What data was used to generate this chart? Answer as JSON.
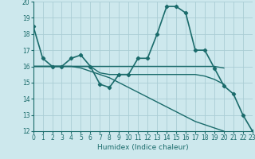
{
  "xlabel": "Humidex (Indice chaleur)",
  "x_values": [
    0,
    1,
    2,
    3,
    4,
    5,
    6,
    7,
    8,
    9,
    10,
    11,
    12,
    13,
    14,
    15,
    16,
    17,
    18,
    19,
    20,
    21,
    22,
    23
  ],
  "lines": [
    {
      "y": [
        18.5,
        16.5,
        16.0,
        16.0,
        16.5,
        16.7,
        16.0,
        14.9,
        14.7,
        15.5,
        15.5,
        16.5,
        16.5,
        18.0,
        19.7,
        19.7,
        19.3,
        17.0,
        17.0,
        15.9,
        14.8,
        14.3,
        13.0,
        12.0
      ],
      "color": "#1a6b6b",
      "linewidth": 1.2,
      "marker": "D",
      "markersize": 2.2
    },
    {
      "y": [
        16.0,
        16.0,
        16.0,
        16.0,
        16.0,
        16.0,
        16.0,
        16.0,
        16.0,
        16.0,
        16.0,
        16.0,
        16.0,
        16.0,
        16.0,
        16.0,
        16.0,
        16.0,
        16.0,
        16.0,
        15.9,
        null,
        null,
        null
      ],
      "color": "#1a6b6b",
      "linewidth": 1.0,
      "marker": null,
      "markersize": 0
    },
    {
      "y": [
        16.0,
        16.0,
        16.0,
        16.0,
        16.0,
        16.0,
        16.0,
        15.6,
        15.5,
        15.5,
        15.5,
        15.5,
        15.5,
        15.5,
        15.5,
        15.5,
        15.5,
        15.5,
        15.4,
        15.2,
        14.9,
        null,
        null,
        null
      ],
      "color": "#1a6b6b",
      "linewidth": 1.0,
      "marker": null,
      "markersize": 0
    },
    {
      "y": [
        16.0,
        16.0,
        16.0,
        16.0,
        16.0,
        15.9,
        15.7,
        15.5,
        15.3,
        15.0,
        14.7,
        14.4,
        14.1,
        13.8,
        13.5,
        13.2,
        12.9,
        12.6,
        12.4,
        12.2,
        12.0,
        null,
        null,
        null
      ],
      "color": "#1a6b6b",
      "linewidth": 1.0,
      "marker": null,
      "markersize": 0
    }
  ],
  "ylim": [
    12,
    20
  ],
  "xlim": [
    0,
    23
  ],
  "yticks": [
    12,
    13,
    14,
    15,
    16,
    17,
    18,
    19,
    20
  ],
  "xticks": [
    0,
    1,
    2,
    3,
    4,
    5,
    6,
    7,
    8,
    9,
    10,
    11,
    12,
    13,
    14,
    15,
    16,
    17,
    18,
    19,
    20,
    21,
    22,
    23
  ],
  "bg_color": "#cde8ed",
  "grid_color": "#aacdd5",
  "line_color": "#1a6b6b",
  "tick_fontsize": 5.5,
  "label_fontsize": 6.5
}
